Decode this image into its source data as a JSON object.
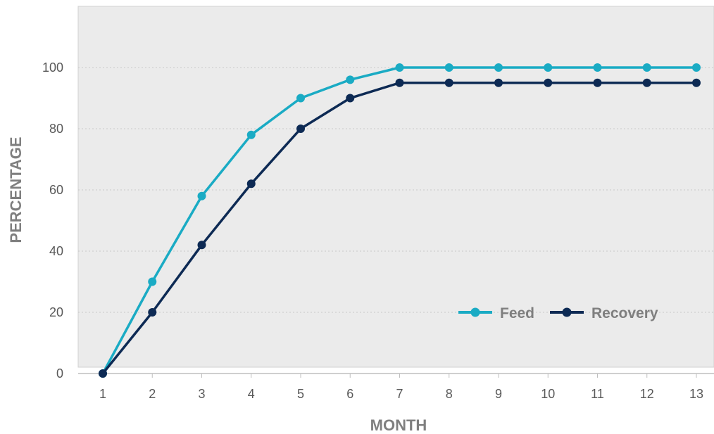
{
  "chart_data": {
    "type": "line",
    "x": [
      1,
      2,
      3,
      4,
      5,
      6,
      7,
      8,
      9,
      10,
      11,
      12,
      13
    ],
    "xlabel": "MONTH",
    "ylabel": "PERCENTAGE",
    "ylim": [
      0,
      120
    ],
    "yticks": [
      0,
      20,
      40,
      60,
      80,
      100
    ],
    "grid": true,
    "legend_position": "bottom-right",
    "series": [
      {
        "name": "Feed",
        "color": "#1aabc4",
        "values": [
          0,
          30,
          58,
          78,
          90,
          96,
          100,
          100,
          100,
          100,
          100,
          100,
          100
        ]
      },
      {
        "name": "Recovery",
        "color": "#0d2a54",
        "values": [
          0,
          20,
          42,
          62,
          80,
          90,
          95,
          95,
          95,
          95,
          95,
          95,
          95
        ]
      }
    ]
  }
}
